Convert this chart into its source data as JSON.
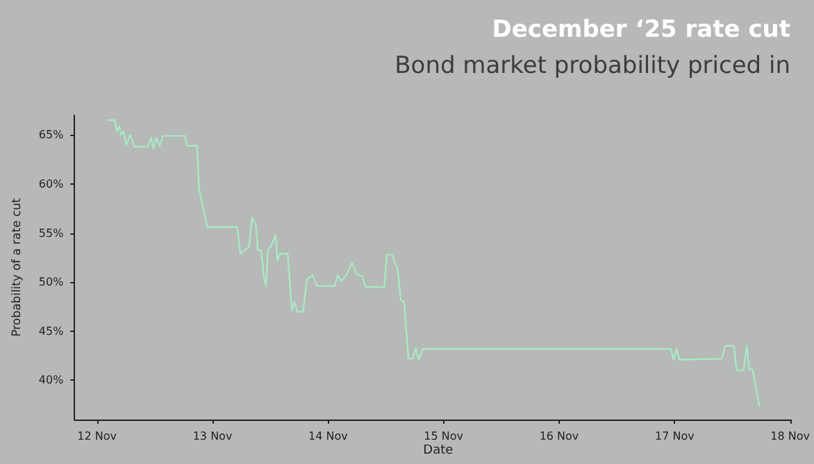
{
  "chart_data": {
    "type": "line",
    "title": "December ‘25 rate cut",
    "subtitle": "Bond market probability priced in",
    "xlabel": "Date",
    "ylabel": "Probability of a rate cut",
    "x": [
      "--11-12T02:18",
      "--11-12T03:42",
      "--11-12T04:06",
      "--11-12T04:36",
      "--11-12T05:00",
      "--11-12T05:30",
      "--11-12T06:06",
      "--11-12T06:54",
      "--11-12T07:48",
      "--11-12T10:30",
      "--11-12T11:12",
      "--11-12T11:42",
      "--11-12T12:18",
      "--11-12T13:00",
      "--11-12T13:42",
      "--11-12T18:18",
      "--11-12T18:42",
      "--11-12T20:48",
      "--11-12T21:12",
      "--11-12T22:54",
      "--11-13T05:06",
      "--11-13T05:48",
      "--11-13T07:00",
      "--11-13T07:36",
      "--11-13T08:12",
      "--11-13T09:00",
      "--11-13T09:24",
      "--11-13T10:06",
      "--11-13T10:36",
      "--11-13T11:06",
      "--11-13T11:30",
      "--11-13T12:24",
      "--11-13T13:06",
      "--11-13T13:30",
      "--11-13T14:00",
      "--11-13T15:36",
      "--11-13T16:30",
      "--11-13T17:00",
      "--11-13T17:36",
      "--11-13T18:48",
      "--11-13T19:36",
      "--11-13T20:48",
      "--11-13T21:42",
      "--11-14T01:24",
      "--11-14T02:00",
      "--11-14T02:42",
      "--11-14T03:48",
      "--11-14T05:00",
      "--11-14T05:54",
      "--11-14T07:06",
      "--11-14T07:48",
      "--11-14T11:42",
      "--11-14T12:12",
      "--11-14T13:18",
      "--11-14T14:30",
      "--11-14T15:06",
      "--11-14T15:48",
      "--11-14T16:42",
      "--11-14T17:36",
      "--11-14T18:12",
      "--11-14T18:48",
      "--11-14T19:42",
      "--11-14T20:06",
      "--11-16T23:12",
      "--11-16T23:48",
      "--11-17T00:24",
      "--11-17T01:00",
      "--11-17T09:48",
      "--11-17T10:30",
      "--11-17T12:18",
      "--11-17T12:54",
      "--11-17T14:18",
      "--11-17T15:00",
      "--11-17T15:30",
      "--11-17T16:12",
      "--11-17T17:36"
    ],
    "series": [
      {
        "color": "#a9e8c4",
        "values": [
          66.5,
          66.5,
          65.4,
          65.9,
          65,
          65.4,
          64,
          65,
          63.8,
          63.8,
          64.7,
          63.6,
          64.7,
          63.9,
          64.9,
          64.9,
          63.9,
          63.9,
          59.5,
          55.6,
          55.6,
          52.9,
          53.4,
          53.6,
          56.6,
          55.8,
          53.3,
          53.2,
          50.8,
          49.6,
          53.2,
          53.9,
          54.8,
          52.2,
          52.9,
          52.9,
          47.1,
          48,
          47,
          47,
          50.3,
          50.7,
          49.6,
          49.6,
          50.7,
          50.1,
          50.7,
          52,
          50.8,
          50.6,
          49.5,
          49.5,
          52.8,
          52.8,
          51.2,
          48.2,
          48,
          42.2,
          42.2,
          43.3,
          42.1,
          43.2,
          43.2,
          43.2,
          42.1,
          43.2,
          42.1,
          42.2,
          43.5,
          43.5,
          41,
          41,
          43.5,
          41.1,
          41.1,
          37.4
        ]
      }
    ],
    "xlim": [
      "--11-11T19:20",
      "--11-18T00:00"
    ],
    "xticks": [
      {
        "value": "--11-12",
        "label": "12 Nov"
      },
      {
        "value": "--11-13",
        "label": "13 Nov"
      },
      {
        "value": "--11-14",
        "label": "14 Nov"
      },
      {
        "value": "--11-15",
        "label": "15 Nov"
      },
      {
        "value": "--11-16",
        "label": "16 Nov"
      },
      {
        "value": "--11-17",
        "label": "17 Nov"
      },
      {
        "value": "--11-18",
        "label": "18 Nov"
      }
    ],
    "ylim": [
      36,
      67
    ],
    "yticks": [
      {
        "value": 40,
        "label": "40%"
      },
      {
        "value": 45,
        "label": "45%"
      },
      {
        "value": 50,
        "label": "50%"
      },
      {
        "value": 55,
        "label": "55%"
      },
      {
        "value": 60,
        "label": "60%"
      },
      {
        "value": 65,
        "label": "65%"
      }
    ],
    "grid": false,
    "marker": "none",
    "line_style": "solid"
  }
}
